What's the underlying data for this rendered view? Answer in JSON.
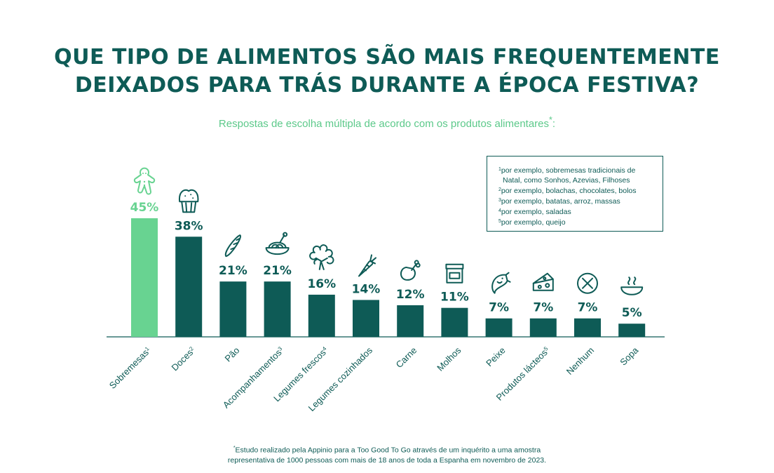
{
  "title_line1": "QUE TIPO DE ALIMENTOS SÃO MAIS FREQUENTEMENTE",
  "title_line2": "DEIXADOS PARA TRÁS DURANTE A ÉPOCA FESTIVA?",
  "subtitle": "Respostas de escolha múltipla de acordo com os produtos alimentares",
  "subtitle_mark": "*",
  "subtitle_tail": ":",
  "legend": [
    {
      "num": "1",
      "text": "por exemplo, sobremesas tradicionais de"
    },
    {
      "num": "",
      "text": "Natal, como Sonhos, Azevias, Filhoses"
    },
    {
      "num": "2",
      "text": "por exemplo, bolachas, chocolates, bolos"
    },
    {
      "num": "3",
      "text": "por exemplo, batatas, arroz, massas"
    },
    {
      "num": "4",
      "text": "por exemplo, saladas"
    },
    {
      "num": "5",
      "text": "por exemplo, queijo"
    }
  ],
  "footnote_mark": "*",
  "footnote_line1": "Estudo realizado pela Appinio para a Too Good To Go através de um inquérito a uma amostra",
  "footnote_line2": "representativa de 1000 pessoas com mais de 18 anos de toda a Espanha em novembro de 2023.",
  "colors": {
    "highlight": "#68d391",
    "bar": "#0e5b56",
    "text": "#0e5b56",
    "axis": "#0e5b56"
  },
  "chart_data": {
    "type": "bar",
    "categories": [
      "Sobremesas",
      "Doces",
      "Pão",
      "Acompanhamentos",
      "Legumes frescos",
      "Legumes cozinhados",
      "Carne",
      "Molhos",
      "Peixe",
      "Produtos lácteos",
      "Nenhum",
      "Sopa"
    ],
    "category_superscripts": [
      "1",
      "2",
      "",
      "3",
      "4",
      "",
      "",
      "",
      "",
      "5",
      "",
      ""
    ],
    "values": [
      45,
      38,
      21,
      21,
      16,
      14,
      12,
      11,
      7,
      7,
      7,
      5
    ],
    "value_labels": [
      "45%",
      "38%",
      "21%",
      "21%",
      "16%",
      "14%",
      "12%",
      "11%",
      "7%",
      "7%",
      "7%",
      "5%"
    ],
    "icons": [
      "gingerbread-icon",
      "muffin-icon",
      "baguette-icon",
      "pasta-bowl-icon",
      "broccoli-icon",
      "carrot-icon",
      "chicken-leg-icon",
      "jar-icon",
      "fish-icon",
      "cheese-icon",
      "cross-circle-icon",
      "soup-bowl-icon"
    ],
    "highlight_index": 0,
    "unit": "%",
    "ylim": [
      0,
      45
    ],
    "grid": false,
    "legend_position": "top-right"
  }
}
